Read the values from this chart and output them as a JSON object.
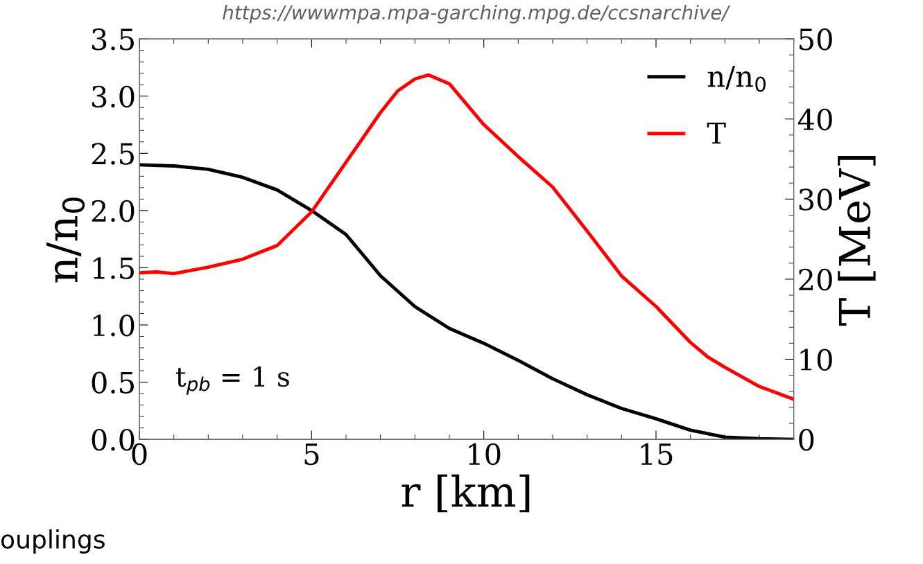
{
  "chart_data": {
    "type": "line",
    "xlabel": "r [km]",
    "ylabel": "n/n$_{0}$",
    "y2label": "T [MeV]",
    "annotations": [
      "https://wwwmpa.mpa-garching.mpg.de/ccsnarchive/",
      "ouplings",
      "t$_{pb}$ = 1 s"
    ],
    "xlim": [
      0,
      19
    ],
    "xticks": [
      0,
      5,
      10,
      15
    ],
    "ylim": [
      0,
      3.5
    ],
    "yticks": [
      {
        "value": 0,
        "label": "0.0"
      },
      {
        "value": 0.5,
        "label": "0.5"
      },
      {
        "value": 1,
        "label": "1.0"
      },
      {
        "value": 1.5,
        "label": "1.5"
      },
      {
        "value": 2,
        "label": "2.0"
      },
      {
        "value": 2.5,
        "label": "2.5"
      },
      {
        "value": 3,
        "label": "3.0"
      },
      {
        "value": 3.5,
        "label": "3.5"
      }
    ],
    "y2lim": [
      0,
      50
    ],
    "y2ticks": [
      0,
      10,
      20,
      30,
      40,
      50
    ],
    "grid": false,
    "legend": "top right",
    "line_style": "solid",
    "marker": "none",
    "series": [
      {
        "name": "n/n$_{0}$",
        "color": "#000000",
        "x": [
          0,
          1,
          2,
          3,
          4,
          5,
          6,
          7,
          8,
          9,
          10,
          11,
          12,
          13,
          14,
          15,
          16,
          17,
          18,
          19
        ],
        "values": [
          2.4,
          2.39,
          2.36,
          2.29,
          2.18,
          2.0,
          1.79,
          1.43,
          1.16,
          0.97,
          0.84,
          0.69,
          0.53,
          0.39,
          0.27,
          0.18,
          0.08,
          0.02,
          0.005,
          0
        ]
      },
      {
        "name": "T",
        "color": "#ff0000",
        "axis": "y2",
        "x": [
          0,
          0.5,
          1,
          2,
          3,
          4,
          5,
          6,
          7,
          7.5,
          8,
          8.4,
          9,
          10,
          11,
          12,
          13,
          14,
          15,
          16,
          16.5,
          17,
          18,
          19
        ],
        "values": [
          20.8,
          20.9,
          20.7,
          21.5,
          22.5,
          24.2,
          28.4,
          34.6,
          40.8,
          43.5,
          45.0,
          45.5,
          44.4,
          39.3,
          35.3,
          31.5,
          26.0,
          20.4,
          16.6,
          12.1,
          10.3,
          9.0,
          6.6,
          5.0
        ]
      }
    ]
  }
}
